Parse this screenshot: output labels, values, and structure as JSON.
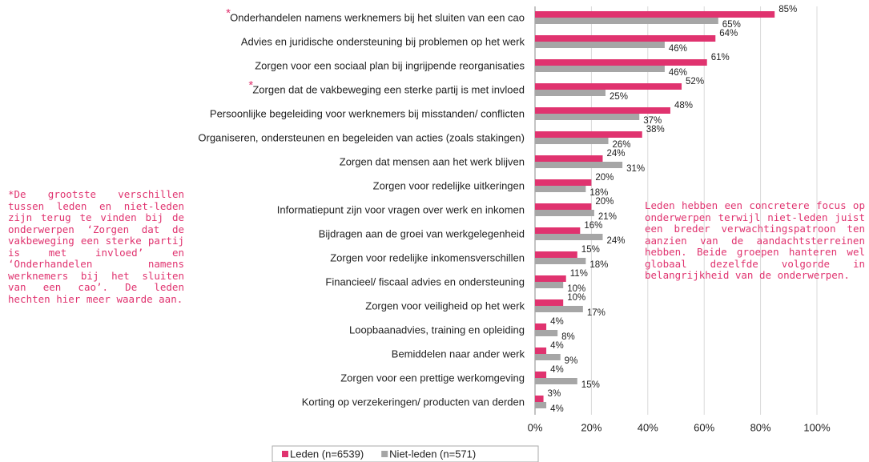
{
  "chart_data": {
    "type": "bar",
    "orientation": "horizontal",
    "categories": [
      "Onderhandelen namens werknemers  bij het sluiten van een cao",
      "Advies en juridische ondersteuning bij problemen op het werk",
      "Zorgen voor een sociaal plan bij ingrijpende reorganisaties",
      "Zorgen dat de vakbeweging een sterke partij is met invloed",
      "Persoonlijke begeleiding voor werknemers  bij misstanden/ conflicten",
      "Organiseren, ondersteunen en begeleiden van acties (zoals stakingen)",
      "Zorgen dat mensen aan het werk blijven",
      "Zorgen voor redelijke uitkeringen",
      "Informatiepunt zijn voor vragen over werk en inkomen",
      "Bijdragen aan de groei van werkgelegenheid",
      "Zorgen voor redelijke inkomensverschillen",
      "Financieel/ fiscaal advies en ondersteuning",
      "Zorgen voor veiligheid op het werk",
      "Loopbaanadvies, training en opleiding",
      "Bemiddelen naar ander werk",
      "Zorgen voor een prettige werkomgeving",
      "Korting op verzekeringen/  producten van derden"
    ],
    "category_marks": [
      "*",
      null,
      null,
      "*",
      null,
      null,
      null,
      null,
      null,
      null,
      null,
      null,
      null,
      null,
      null,
      null,
      null
    ],
    "series": [
      {
        "name": "Leden (n=6539)",
        "color": "#e0336f",
        "values": [
          85,
          64,
          61,
          52,
          48,
          38,
          24,
          20,
          20,
          16,
          15,
          11,
          10,
          4,
          4,
          4,
          3
        ],
        "value_labels": [
          "85%",
          "64%",
          "61%",
          "52%",
          "48%",
          "38%",
          "24%",
          "20%",
          "20%",
          "16%",
          "15%",
          "11%",
          "10%",
          "4%",
          "4%",
          "4%",
          "3%"
        ]
      },
      {
        "name": "Niet-leden (n=571)",
        "color": "#a6a6a6",
        "values": [
          65,
          46,
          46,
          25,
          37,
          26,
          31,
          18,
          21,
          24,
          18,
          10,
          17,
          8,
          9,
          15,
          4
        ],
        "value_labels": [
          "65%",
          "46%",
          "46%",
          "25%",
          "37%",
          "26%",
          "31%",
          "18%",
          "21%",
          "24%",
          "18%",
          "10%",
          "17%",
          "8%",
          "9%",
          "15%",
          "4%"
        ]
      }
    ],
    "xlim": [
      0,
      100
    ],
    "xticks": [
      {
        "value": 0,
        "label": "0%"
      },
      {
        "value": 20,
        "label": "20%"
      },
      {
        "value": 40,
        "label": "40%"
      },
      {
        "value": 60,
        "label": "60%"
      },
      {
        "value": 80,
        "label": "80%"
      },
      {
        "value": 100,
        "label": "100%"
      }
    ],
    "grid": true,
    "legend": "bottom",
    "annotations": [
      "*De grootste verschillen tussen leden en niet-leden zijn terug te vinden bij de onderwerpen ‘Zorgen dat de vakbeweging een sterke partij is met invloed’ en ‘Onderhandelen namens werknemers bij het sluiten van een cao’. De leden hechten hier meer waarde aan.",
      "Leden hebben een concretere focus op onderwerpen terwijl niet-leden juist een breder verwachtingspatroon ten aanzien van de aandachtsterreinen hebben. Beide groepen hanteren wel globaal dezelfde volgorde in belangrijkheid van de onderwerpen."
    ]
  }
}
